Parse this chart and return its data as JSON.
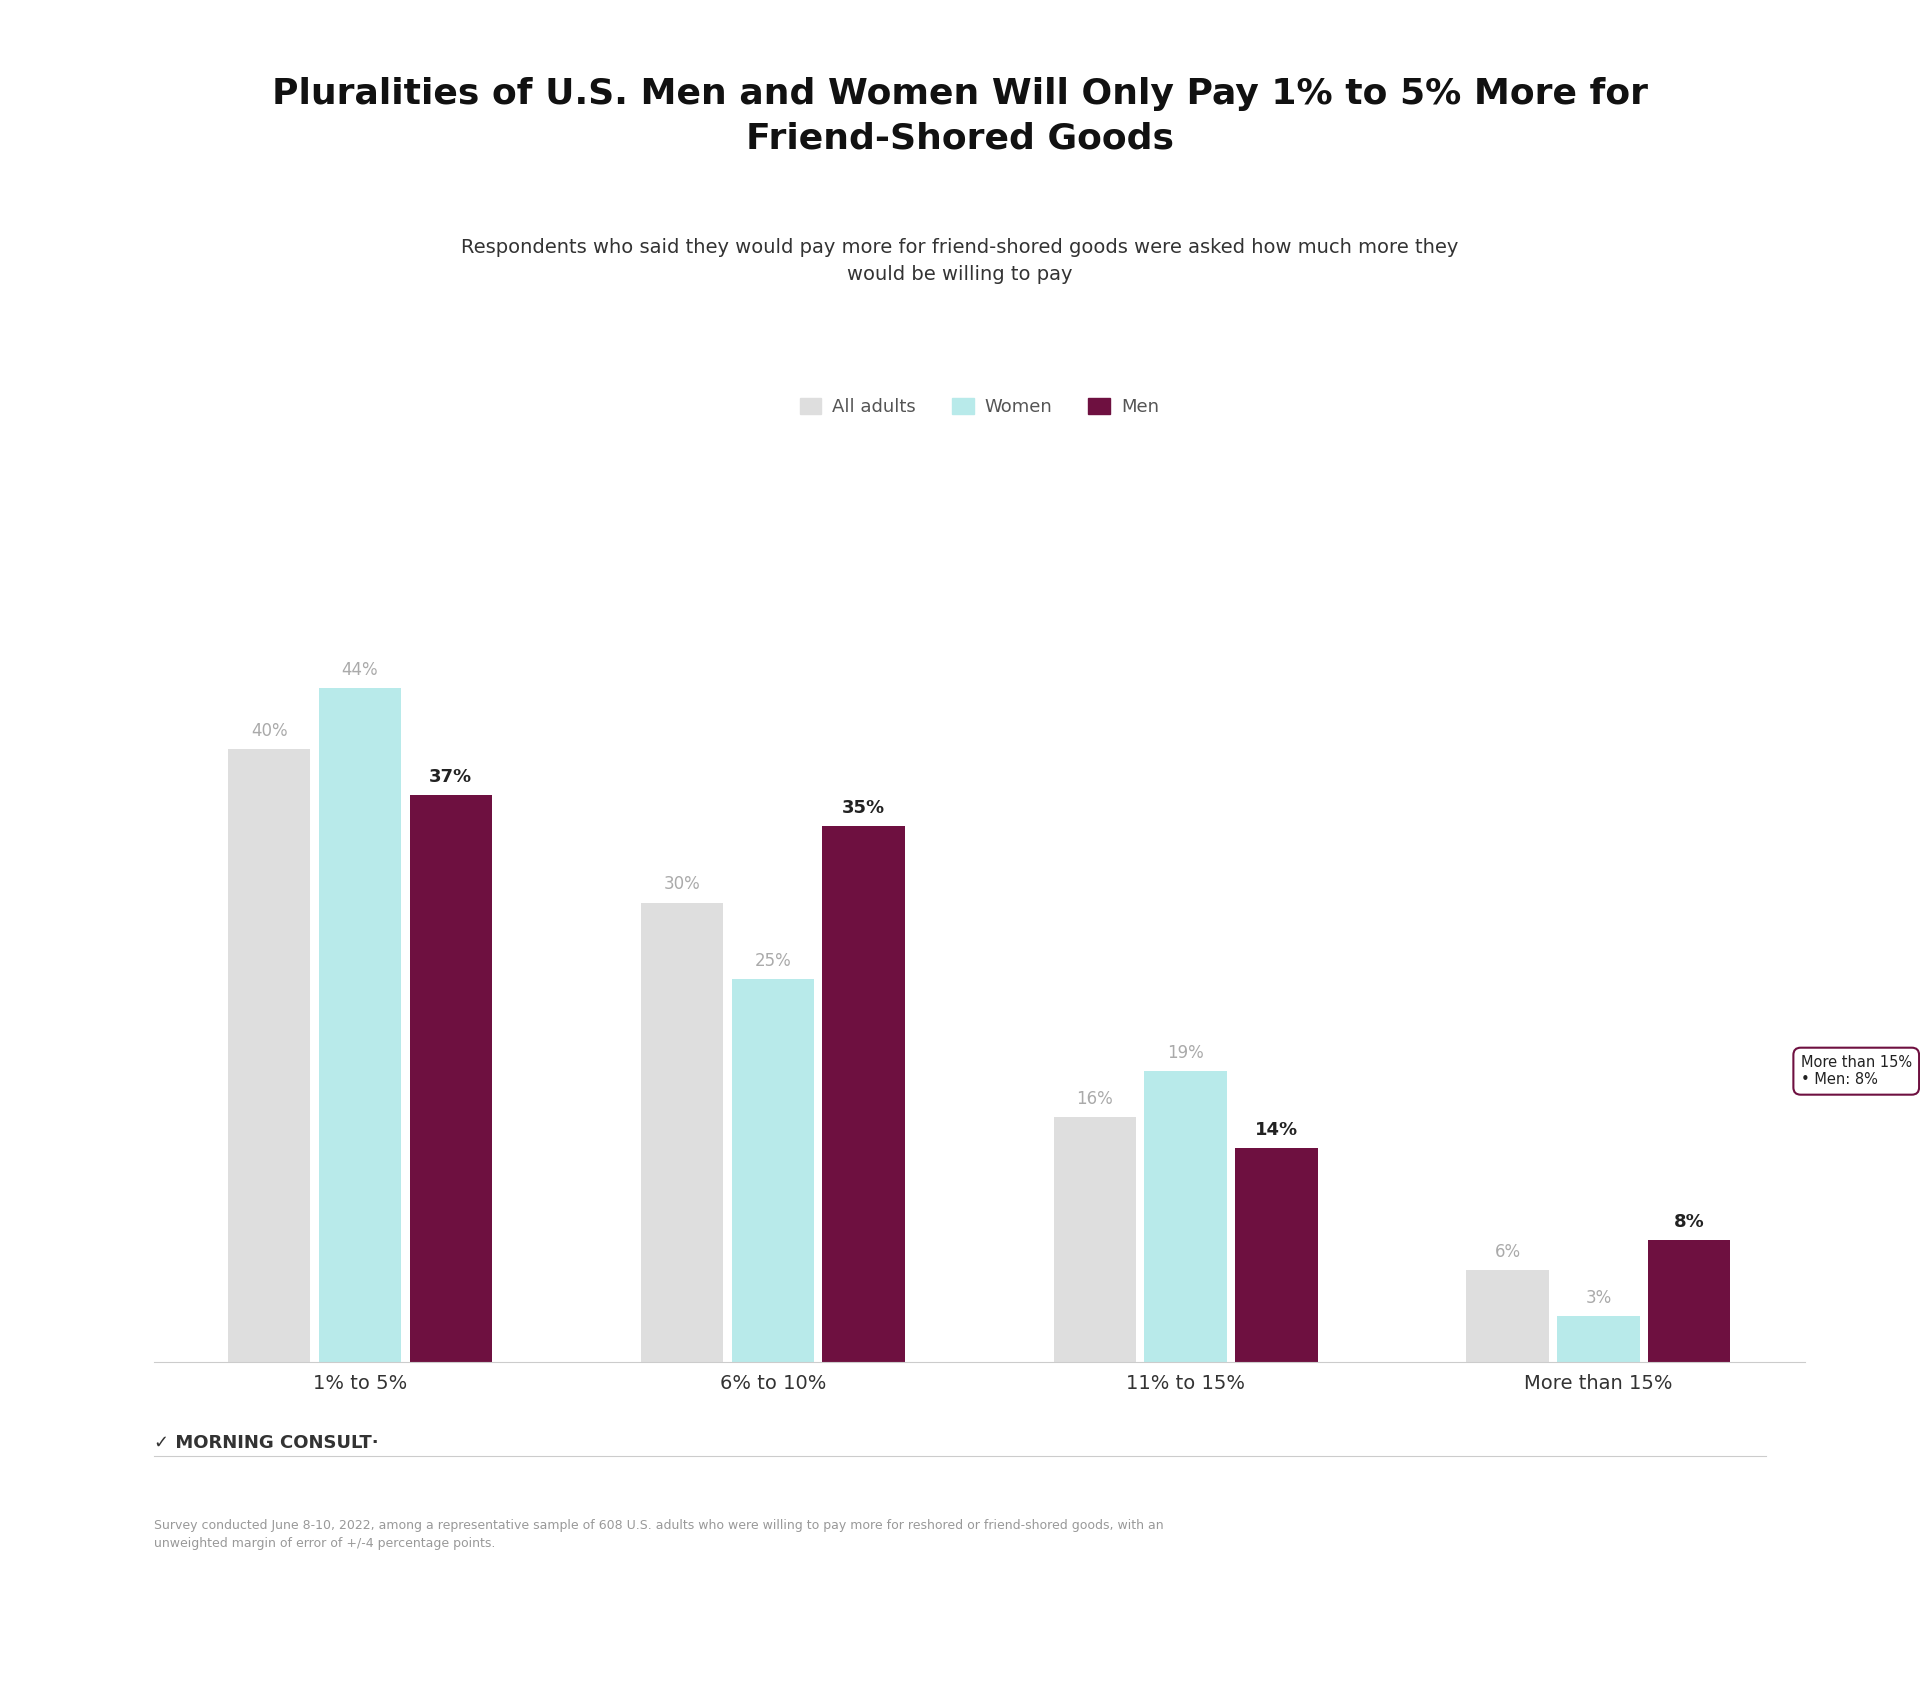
{
  "title": "Pluralities of U.S. Men and Women Will Only Pay 1% to 5% More for\nFriend-Shored Goods",
  "subtitle": "Respondents who said they would pay more for friend-shored goods were asked how much more they\nwould be willing to pay",
  "categories": [
    "1% to 5%",
    "6% to 10%",
    "11% to 15%",
    "More than 15%"
  ],
  "series": {
    "All adults": [
      40,
      30,
      16,
      6
    ],
    "Women": [
      44,
      25,
      19,
      3
    ],
    "Men": [
      37,
      35,
      14,
      8
    ]
  },
  "colors": {
    "All adults": "#dedede",
    "Women": "#b8eaea",
    "Men": "#6e1040"
  },
  "label_colors": {
    "All adults": "#aaaaaa",
    "Women": "#aaaaaa",
    "Men": "#222222"
  },
  "ylim": [
    0,
    50
  ],
  "background_color": "#ffffff",
  "title_fontsize": 26,
  "subtitle_fontsize": 14,
  "footer_text": "Survey conducted June 8-10, 2022, among a representative sample of 608 U.S. adults who were willing to pay more for reshored or friend-shored goods, with an\nunweighted margin of error of +/-4 percentage points."
}
